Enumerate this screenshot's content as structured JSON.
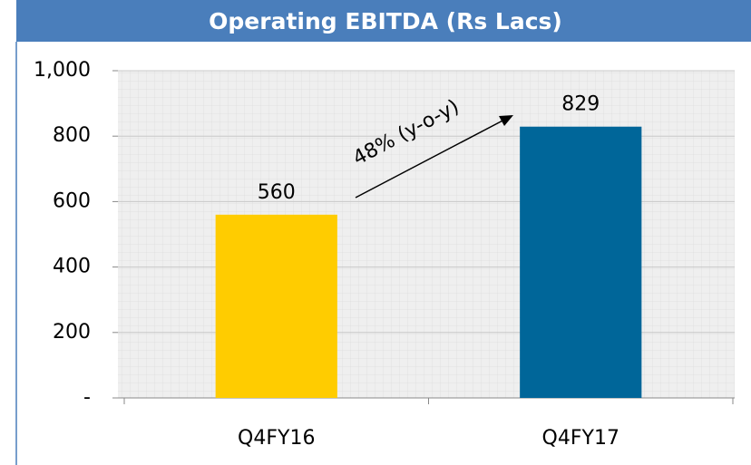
{
  "chart_data": {
    "type": "bar",
    "title": "Operating EBITDA (Rs Lacs)",
    "categories": [
      "Q4FY16",
      "Q4FY17"
    ],
    "values": [
      560,
      829
    ],
    "colors": [
      "#ffcc00",
      "#006699"
    ],
    "ylim": [
      0,
      1000
    ],
    "yticks": [
      {
        "value": 0,
        "label": "-"
      },
      200,
      400,
      600,
      {
        "value": 800,
        "label": "800"
      },
      {
        "value": 1000,
        "label": "1,000"
      }
    ],
    "grid": true,
    "annotation": "48% (y-o-y)"
  }
}
